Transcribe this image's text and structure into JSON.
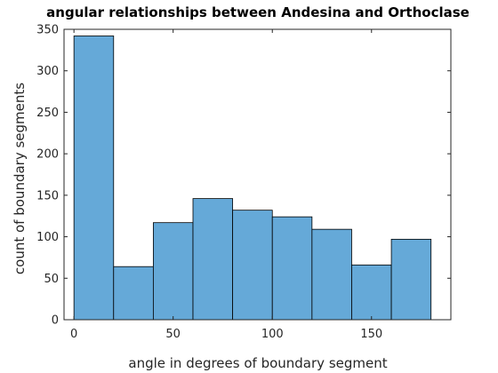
{
  "chart_data": {
    "type": "bar",
    "title": "angular relationships between Andesina and Orthoclase",
    "xlabel": "angle in degrees of boundary segment",
    "ylabel": "count of boundary segments",
    "bin_edges": [
      0,
      20,
      40,
      60,
      80,
      100,
      120,
      140,
      160,
      180
    ],
    "values": [
      342,
      64,
      117,
      146,
      132,
      124,
      109,
      66,
      97
    ],
    "xlim": [
      -5,
      190
    ],
    "ylim": [
      0,
      350
    ],
    "xticks": [
      0,
      50,
      100,
      150
    ],
    "yticks": [
      0,
      50,
      100,
      150,
      200,
      250,
      300,
      350
    ],
    "grid": false,
    "bar_color": "#65A9D8",
    "edge_color": "#000000",
    "box": true
  }
}
